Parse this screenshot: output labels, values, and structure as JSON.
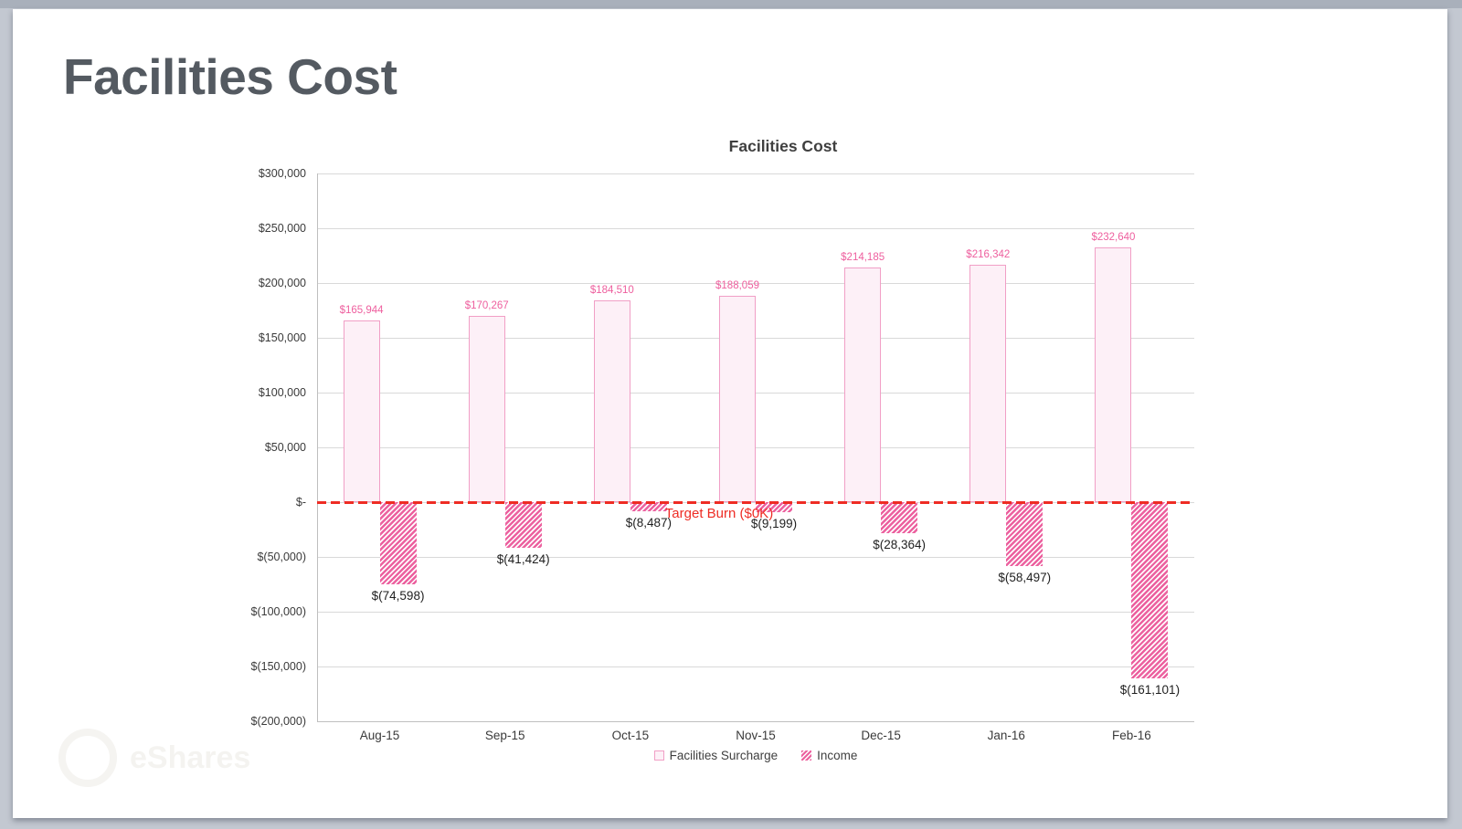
{
  "window": {
    "background": "#c3c8d1",
    "top_strip": "#a9b0bb"
  },
  "slide": {
    "title": "Facilities Cost"
  },
  "watermark": {
    "text": "eShares"
  },
  "chart_data": {
    "type": "bar",
    "title": "Facilities Cost",
    "categories": [
      "Aug-15",
      "Sep-15",
      "Oct-15",
      "Nov-15",
      "Dec-15",
      "Jan-16",
      "Feb-16"
    ],
    "series": [
      {
        "name": "Facilities Surcharge",
        "values": [
          165944,
          170267,
          184510,
          188059,
          214185,
          216342,
          232640
        ],
        "labels": [
          "$165,944",
          "$170,267",
          "$184,510",
          "$188,059",
          "$214,185",
          "$216,342",
          "$232,640"
        ]
      },
      {
        "name": "Income",
        "values": [
          -74598,
          -41424,
          -8487,
          -9199,
          -28364,
          -58497,
          -161101
        ],
        "labels": [
          "$(74,598)",
          "$(41,424)",
          "$(8,487)",
          "$(9,199)",
          "$(28,364)",
          "$(58,497)",
          "$(161,101)"
        ]
      }
    ],
    "y_axis": {
      "min": -200000,
      "max": 300000,
      "step": 50000,
      "tick_labels": [
        "$300,000",
        "$250,000",
        "$200,000",
        "$150,000",
        "$100,000",
        "$50,000",
        "$-",
        "$(50,000)",
        "$(100,000)",
        "$(150,000)",
        "$(200,000)"
      ]
    },
    "target_line": {
      "value": 0,
      "label": "Target Burn ($0K)"
    },
    "legend": {
      "position": "bottom",
      "items": [
        "Facilities Surcharge",
        "Income"
      ]
    },
    "grid": true,
    "colors": {
      "surcharge_fill": "#fdf0f7",
      "surcharge_border": "#f19fc6",
      "surcharge_label": "#ee5f9e",
      "income": "#ec619f",
      "income_label": "#1f1f1f",
      "target": "#ee2c24",
      "gridline": "#d9d9d9",
      "axis": "#bfbfbf",
      "tick_text": "#3a3a3a",
      "title": "#3f3f3f"
    }
  }
}
